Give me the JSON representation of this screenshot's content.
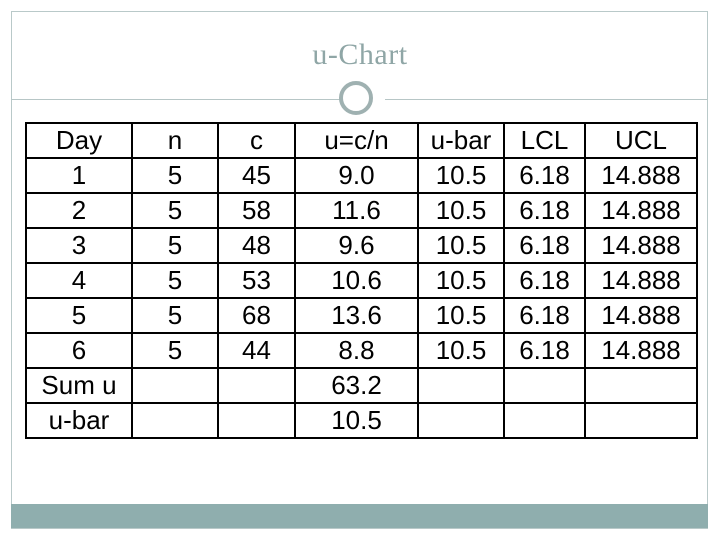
{
  "slide": {
    "title": "u-Chart"
  },
  "table": {
    "headers": [
      "Day",
      "n",
      "c",
      "u=c/n",
      "u-bar",
      "LCL",
      "UCL"
    ],
    "rows": [
      [
        "1",
        "5",
        "45",
        "9.0",
        "10.5",
        "6.18",
        "14.888"
      ],
      [
        "2",
        "5",
        "58",
        "11.6",
        "10.5",
        "6.18",
        "14.888"
      ],
      [
        "3",
        "5",
        "48",
        "9.6",
        "10.5",
        "6.18",
        "14.888"
      ],
      [
        "4",
        "5",
        "53",
        "10.6",
        "10.5",
        "6.18",
        "14.888"
      ],
      [
        "5",
        "5",
        "68",
        "13.6",
        "10.5",
        "6.18",
        "14.888"
      ],
      [
        "6",
        "5",
        "44",
        "8.8",
        "10.5",
        "6.18",
        "14.888"
      ],
      [
        "Sum u",
        "",
        "",
        "63.2",
        "",
        "",
        ""
      ],
      [
        "u-bar",
        "",
        "",
        "10.5",
        "",
        "",
        ""
      ]
    ]
  },
  "colors": {
    "title": "#8fa6a6",
    "accent_bar": "#8faeae",
    "frame": "#b9c9c9"
  }
}
